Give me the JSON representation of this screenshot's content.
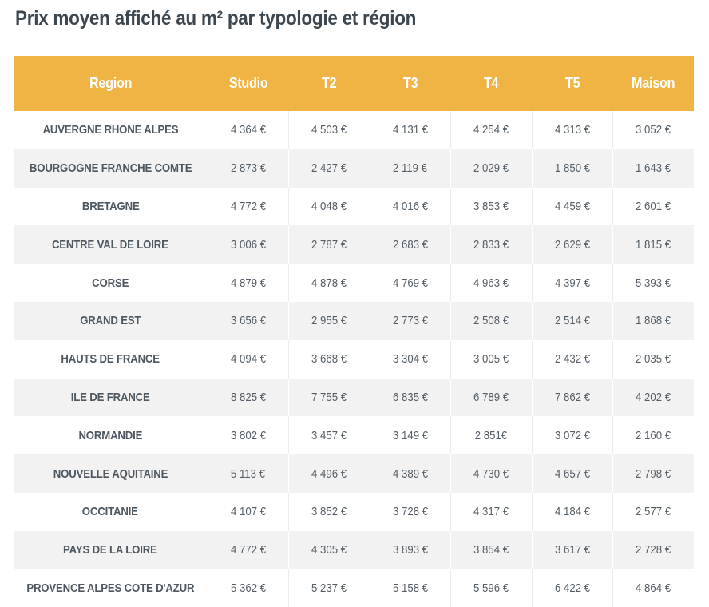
{
  "title": "Prix moyen affiché au m² par typologie et région",
  "table": {
    "columns": [
      "Region",
      "Studio",
      "T2",
      "T3",
      "T4",
      "T5",
      "Maison"
    ],
    "rows": [
      [
        "AUVERGNE RHONE ALPES",
        "4 364 €",
        "4 503 €",
        "4 131 €",
        "4 254 €",
        "4 313 €",
        "3 052 €"
      ],
      [
        "BOURGOGNE FRANCHE COMTE",
        "2 873 €",
        "2 427 €",
        "2 119 €",
        "2 029 €",
        "1 850 €",
        "1 643 €"
      ],
      [
        "BRETAGNE",
        "4 772 €",
        "4 048 €",
        "4 016 €",
        "3 853 €",
        "4 459 €",
        "2 601 €"
      ],
      [
        "CENTRE VAL DE LOIRE",
        "3 006 €",
        "2 787 €",
        "2 683 €",
        "2 833 €",
        "2 629 €",
        "1 815 €"
      ],
      [
        "CORSE",
        "4 879 €",
        "4 878 €",
        "4 769 €",
        "4 963 €",
        "4 397 €",
        "5 393 €"
      ],
      [
        "GRAND EST",
        "3 656 €",
        "2 955 €",
        "2 773 €",
        "2 508 €",
        "2 514 €",
        "1 868 €"
      ],
      [
        "HAUTS DE FRANCE",
        "4 094 €",
        "3 668 €",
        "3 304 €",
        "3 005 €",
        "2 432 €",
        "2 035 €"
      ],
      [
        "ILE DE FRANCE",
        "8 825 €",
        "7 755 €",
        "6 835 €",
        "6 789 €",
        "7 862 €",
        "4 202 €"
      ],
      [
        "NORMANDIE",
        "3 802 €",
        "3 457 €",
        "3 149 €",
        "2 851€",
        "3 072 €",
        "2 160 €"
      ],
      [
        "NOUVELLE AQUITAINE",
        "5 113 €",
        "4 496 €",
        "4 389 €",
        "4 730 €",
        "4 657 €",
        "2 798 €"
      ],
      [
        "OCCITANIE",
        "4 107 €",
        "3 852 €",
        "3 728 €",
        "4 317 €",
        "4 184 €",
        "2 577 €"
      ],
      [
        "PAYS DE LA LOIRE",
        "4 772 €",
        "4 305 €",
        "3 893 €",
        "3 854 €",
        "3 617 €",
        "2 728 €"
      ],
      [
        "PROVENCE ALPES COTE D'AZUR",
        "5 362 €",
        "5 237 €",
        "5 158 €",
        "5 596 €",
        "6 422 €",
        "4 864 €"
      ]
    ]
  },
  "colors": {
    "header_bg": "#f0b444",
    "header_text": "#ffffff",
    "stripe": "#f2f2f2",
    "title_text": "#3d474f"
  },
  "chart_data": {
    "type": "table",
    "title": "Prix moyen affiché au m² par typologie et région",
    "columns": [
      "Region",
      "Studio",
      "T2",
      "T3",
      "T4",
      "T5",
      "Maison"
    ],
    "categories": [
      "AUVERGNE RHONE ALPES",
      "BOURGOGNE FRANCHE COMTE",
      "BRETAGNE",
      "CENTRE VAL DE LOIRE",
      "CORSE",
      "GRAND EST",
      "HAUTS DE FRANCE",
      "ILE DE FRANCE",
      "NORMANDIE",
      "NOUVELLE AQUITAINE",
      "OCCITANIE",
      "PAYS DE LA LOIRE",
      "PROVENCE ALPES COTE D'AZUR"
    ],
    "series": [
      {
        "name": "Studio",
        "values": [
          4364,
          2873,
          4772,
          3006,
          4879,
          3656,
          4094,
          8825,
          3802,
          5113,
          4107,
          4772,
          5362
        ]
      },
      {
        "name": "T2",
        "values": [
          4503,
          2427,
          4048,
          2787,
          4878,
          2955,
          3668,
          7755,
          3457,
          4496,
          3852,
          4305,
          5237
        ]
      },
      {
        "name": "T3",
        "values": [
          4131,
          2119,
          4016,
          2683,
          4769,
          2773,
          3304,
          6835,
          3149,
          4389,
          3728,
          3893,
          5158
        ]
      },
      {
        "name": "T4",
        "values": [
          4254,
          2029,
          3853,
          2833,
          4963,
          2508,
          3005,
          6789,
          2851,
          4730,
          4317,
          3854,
          5596
        ]
      },
      {
        "name": "T5",
        "values": [
          4313,
          1850,
          4459,
          2629,
          4397,
          2514,
          2432,
          7862,
          3072,
          4657,
          4184,
          3617,
          6422
        ]
      },
      {
        "name": "Maison",
        "values": [
          3052,
          1643,
          2601,
          1815,
          5393,
          1868,
          2035,
          4202,
          2160,
          2798,
          2577,
          2728,
          4864
        ]
      }
    ]
  }
}
